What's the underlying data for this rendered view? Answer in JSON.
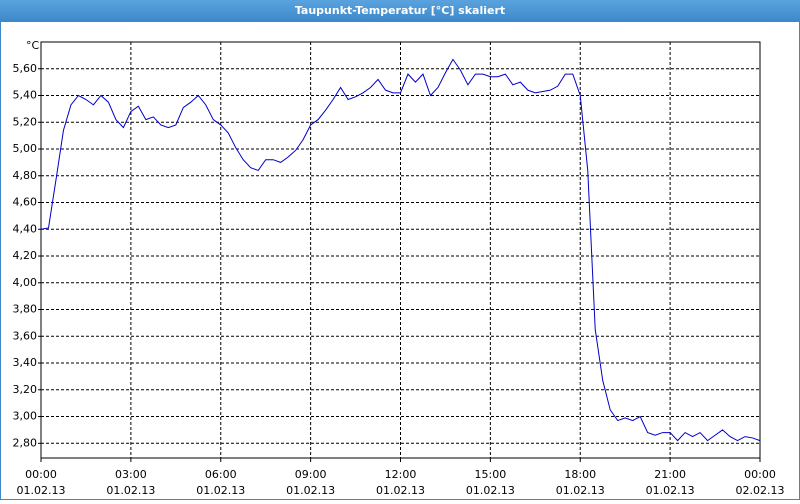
{
  "chart_data": {
    "type": "line",
    "title": "Taupunkt-Temperatur [°C] skaliert",
    "y_unit": "°C",
    "x": [
      0,
      0.25,
      0.5,
      0.75,
      1,
      1.25,
      1.5,
      1.75,
      2,
      2.25,
      2.5,
      2.75,
      3,
      3.25,
      3.5,
      3.75,
      4,
      4.25,
      4.5,
      4.75,
      5,
      5.25,
      5.5,
      5.75,
      6,
      6.25,
      6.5,
      6.75,
      7,
      7.25,
      7.5,
      7.75,
      8,
      8.25,
      8.5,
      8.75,
      9,
      9.25,
      9.5,
      9.75,
      10,
      10.25,
      10.5,
      10.75,
      11,
      11.25,
      11.5,
      11.75,
      12,
      12.25,
      12.5,
      12.75,
      13,
      13.25,
      13.5,
      13.75,
      14,
      14.25,
      14.5,
      14.75,
      15,
      15.25,
      15.5,
      15.75,
      16,
      16.25,
      16.5,
      16.75,
      17,
      17.25,
      17.5,
      17.75,
      18,
      18.25,
      18.5,
      18.75,
      19,
      19.25,
      19.5,
      19.75,
      20,
      20.25,
      20.5,
      20.75,
      21,
      21.25,
      21.5,
      21.75,
      22,
      22.25,
      22.5,
      22.75,
      23,
      23.25,
      23.5,
      23.75,
      24
    ],
    "series": [
      {
        "name": "Taupunkt-Temperatur",
        "color": "#0000c8",
        "values": [
          4.4,
          4.41,
          4.77,
          5.14,
          5.33,
          5.4,
          5.37,
          5.33,
          5.4,
          5.35,
          5.22,
          5.16,
          5.28,
          5.32,
          5.22,
          5.24,
          5.18,
          5.16,
          5.18,
          5.31,
          5.35,
          5.4,
          5.33,
          5.22,
          5.18,
          5.12,
          5.01,
          4.92,
          4.86,
          4.84,
          4.92,
          4.92,
          4.9,
          4.94,
          4.99,
          5.07,
          5.18,
          5.22,
          5.29,
          5.37,
          5.46,
          5.37,
          5.39,
          5.42,
          5.46,
          5.52,
          5.44,
          5.42,
          5.42,
          5.56,
          5.5,
          5.56,
          5.4,
          5.46,
          5.57,
          5.67,
          5.59,
          5.48,
          5.56,
          5.56,
          5.54,
          5.54,
          5.56,
          5.48,
          5.5,
          5.44,
          5.42,
          5.43,
          5.44,
          5.47,
          5.56,
          5.56,
          5.4,
          4.84,
          3.65,
          3.27,
          3.05,
          2.97,
          2.99,
          2.97,
          3.0,
          2.88,
          2.86,
          2.88,
          2.88,
          2.82,
          2.88,
          2.85,
          2.88,
          2.82,
          2.86,
          2.9,
          2.85,
          2.82,
          2.85,
          2.84,
          2.82
        ]
      }
    ],
    "xlim": [
      0,
      24
    ],
    "xticks": [
      {
        "value": 0,
        "label": [
          "00:00",
          "01.02.13"
        ]
      },
      {
        "value": 3,
        "label": [
          "03:00",
          "01.02.13"
        ]
      },
      {
        "value": 6,
        "label": [
          "06:00",
          "01.02.13"
        ]
      },
      {
        "value": 9,
        "label": [
          "09:00",
          "01.02.13"
        ]
      },
      {
        "value": 12,
        "label": [
          "12:00",
          "01.02.13"
        ]
      },
      {
        "value": 15,
        "label": [
          "15:00",
          "01.02.13"
        ]
      },
      {
        "value": 18,
        "label": [
          "18:00",
          "01.02.13"
        ]
      },
      {
        "value": 21,
        "label": [
          "21:00",
          "01.02.13"
        ]
      },
      {
        "value": 24,
        "label": [
          "00:00",
          "02.02.13"
        ]
      }
    ],
    "ylim": [
      2.69,
      5.8
    ],
    "yticks": [
      {
        "value": 2.8,
        "label": "2,80"
      },
      {
        "value": 3.0,
        "label": "3,00"
      },
      {
        "value": 3.2,
        "label": "3,20"
      },
      {
        "value": 3.4,
        "label": "3,40"
      },
      {
        "value": 3.6,
        "label": "3,60"
      },
      {
        "value": 3.8,
        "label": "3,80"
      },
      {
        "value": 4.0,
        "label": "4,00"
      },
      {
        "value": 4.2,
        "label": "4,20"
      },
      {
        "value": 4.4,
        "label": "4,40"
      },
      {
        "value": 4.6,
        "label": "4,60"
      },
      {
        "value": 4.8,
        "label": "4,80"
      },
      {
        "value": 5.0,
        "label": "5,00"
      },
      {
        "value": 5.2,
        "label": "5,20"
      },
      {
        "value": 5.4,
        "label": "5,40"
      },
      {
        "value": 5.6,
        "label": "5,60"
      }
    ],
    "grid": true
  }
}
